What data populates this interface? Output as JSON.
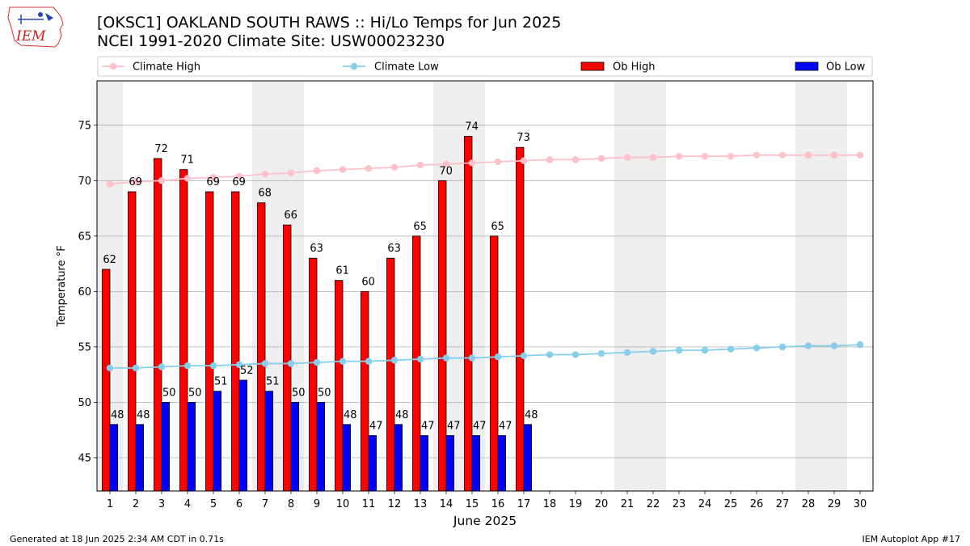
{
  "header": {
    "title_line1": "[OKSC1] OAKLAND SOUTH RAWS :: Hi/Lo Temps for Jun 2025",
    "title_line2": "NCEI 1991-2020 Climate Site: USW00023230",
    "logo_text": "IEM"
  },
  "footer": {
    "generated": "Generated at 18 Jun 2025 2:34 AM CDT in 0.71s",
    "app": "IEM Autoplot App #17"
  },
  "chart_data": {
    "type": "bar",
    "xlabel": "June 2025",
    "ylabel": "Temperature °F",
    "ylim": [
      42,
      79
    ],
    "yticks": [
      45,
      50,
      55,
      60,
      65,
      70,
      75
    ],
    "grid": "horizontal",
    "legend_position": "top",
    "days": [
      1,
      2,
      3,
      4,
      5,
      6,
      7,
      8,
      9,
      10,
      11,
      12,
      13,
      14,
      15,
      16,
      17,
      18,
      19,
      20,
      21,
      22,
      23,
      24,
      25,
      26,
      27,
      28,
      29,
      30
    ],
    "weekend_shading": [
      [
        1,
        1
      ],
      [
        7,
        8
      ],
      [
        14,
        15
      ],
      [
        21,
        22
      ],
      [
        28,
        29
      ]
    ],
    "series": [
      {
        "name": "Climate High",
        "kind": "line",
        "color": "#ffc0cb",
        "values": [
          69.7,
          69.9,
          70.0,
          70.2,
          70.3,
          70.4,
          70.6,
          70.7,
          70.9,
          71.0,
          71.1,
          71.2,
          71.4,
          71.5,
          71.6,
          71.7,
          71.8,
          71.9,
          71.9,
          72.0,
          72.1,
          72.1,
          72.2,
          72.2,
          72.2,
          72.3,
          72.3,
          72.3,
          72.3,
          72.3
        ]
      },
      {
        "name": "Climate Low",
        "kind": "line",
        "color": "#87ceeb",
        "values": [
          53.1,
          53.1,
          53.2,
          53.3,
          53.3,
          53.4,
          53.5,
          53.5,
          53.6,
          53.7,
          53.7,
          53.8,
          53.9,
          54.0,
          54.0,
          54.1,
          54.2,
          54.3,
          54.3,
          54.4,
          54.5,
          54.6,
          54.7,
          54.7,
          54.8,
          54.9,
          55.0,
          55.1,
          55.1,
          55.2
        ]
      },
      {
        "name": "Ob High",
        "kind": "bar",
        "color": "#ff0000",
        "values": [
          62,
          69,
          72,
          71,
          69,
          69,
          68,
          66,
          63,
          61,
          60,
          63,
          65,
          70,
          74,
          65,
          73
        ]
      },
      {
        "name": "Ob Low",
        "kind": "bar",
        "color": "#0000ff",
        "values": [
          48,
          48,
          50,
          50,
          51,
          52,
          51,
          50,
          50,
          48,
          47,
          48,
          47,
          47,
          47,
          47,
          48
        ]
      }
    ]
  }
}
